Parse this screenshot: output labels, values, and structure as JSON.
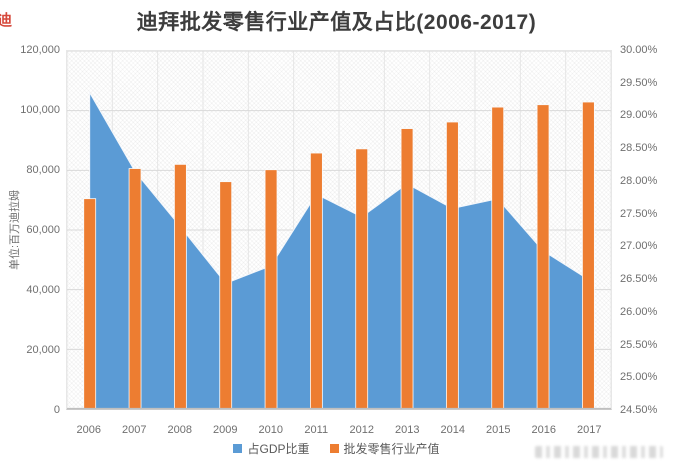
{
  "chart_data": {
    "type": "combo",
    "title": "迪拜批发零售行业产值及占比(2006-2017)",
    "categories": [
      "2006",
      "2007",
      "2008",
      "2009",
      "2010",
      "2011",
      "2012",
      "2013",
      "2014",
      "2015",
      "2016",
      "2017"
    ],
    "series": [
      {
        "name": "占GDP比重",
        "type": "area",
        "axis": "right",
        "color": "#5B9BD5",
        "values": [
          29.36,
          28.15,
          27.3,
          26.43,
          26.7,
          27.8,
          27.45,
          27.96,
          27.58,
          27.73,
          26.93,
          26.49
        ]
      },
      {
        "name": "批发零售行业产值",
        "type": "bar",
        "axis": "left",
        "color": "#ED7D31",
        "values": [
          70500,
          80600,
          82000,
          76200,
          80200,
          85800,
          87200,
          94000,
          96200,
          101200,
          102000,
          102900
        ]
      }
    ],
    "left_axis": {
      "title": "单位:百万迪拉姆",
      "min": 0,
      "max": 120000,
      "step": 20000,
      "tick_labels": [
        "120,000",
        "100,000",
        "80,000",
        "60,000",
        "40,000",
        "20,000",
        "0"
      ]
    },
    "right_axis": {
      "min": 24.5,
      "max": 30,
      "step": 0.5,
      "tick_labels": [
        "30.00%",
        "29.50%",
        "29.00%",
        "28.50%",
        "28.00%",
        "27.50%",
        "27.00%",
        "26.50%",
        "26.00%",
        "25.50%",
        "25.00%",
        "24.50%"
      ]
    },
    "legend": {
      "position": "bottom"
    },
    "grid": true,
    "colors": {
      "h_grid": "#d9d9d9",
      "v_grid": "#e6e6e6",
      "axis_line": "#bfbfbf"
    },
    "red_mark_glyph": "迪"
  }
}
